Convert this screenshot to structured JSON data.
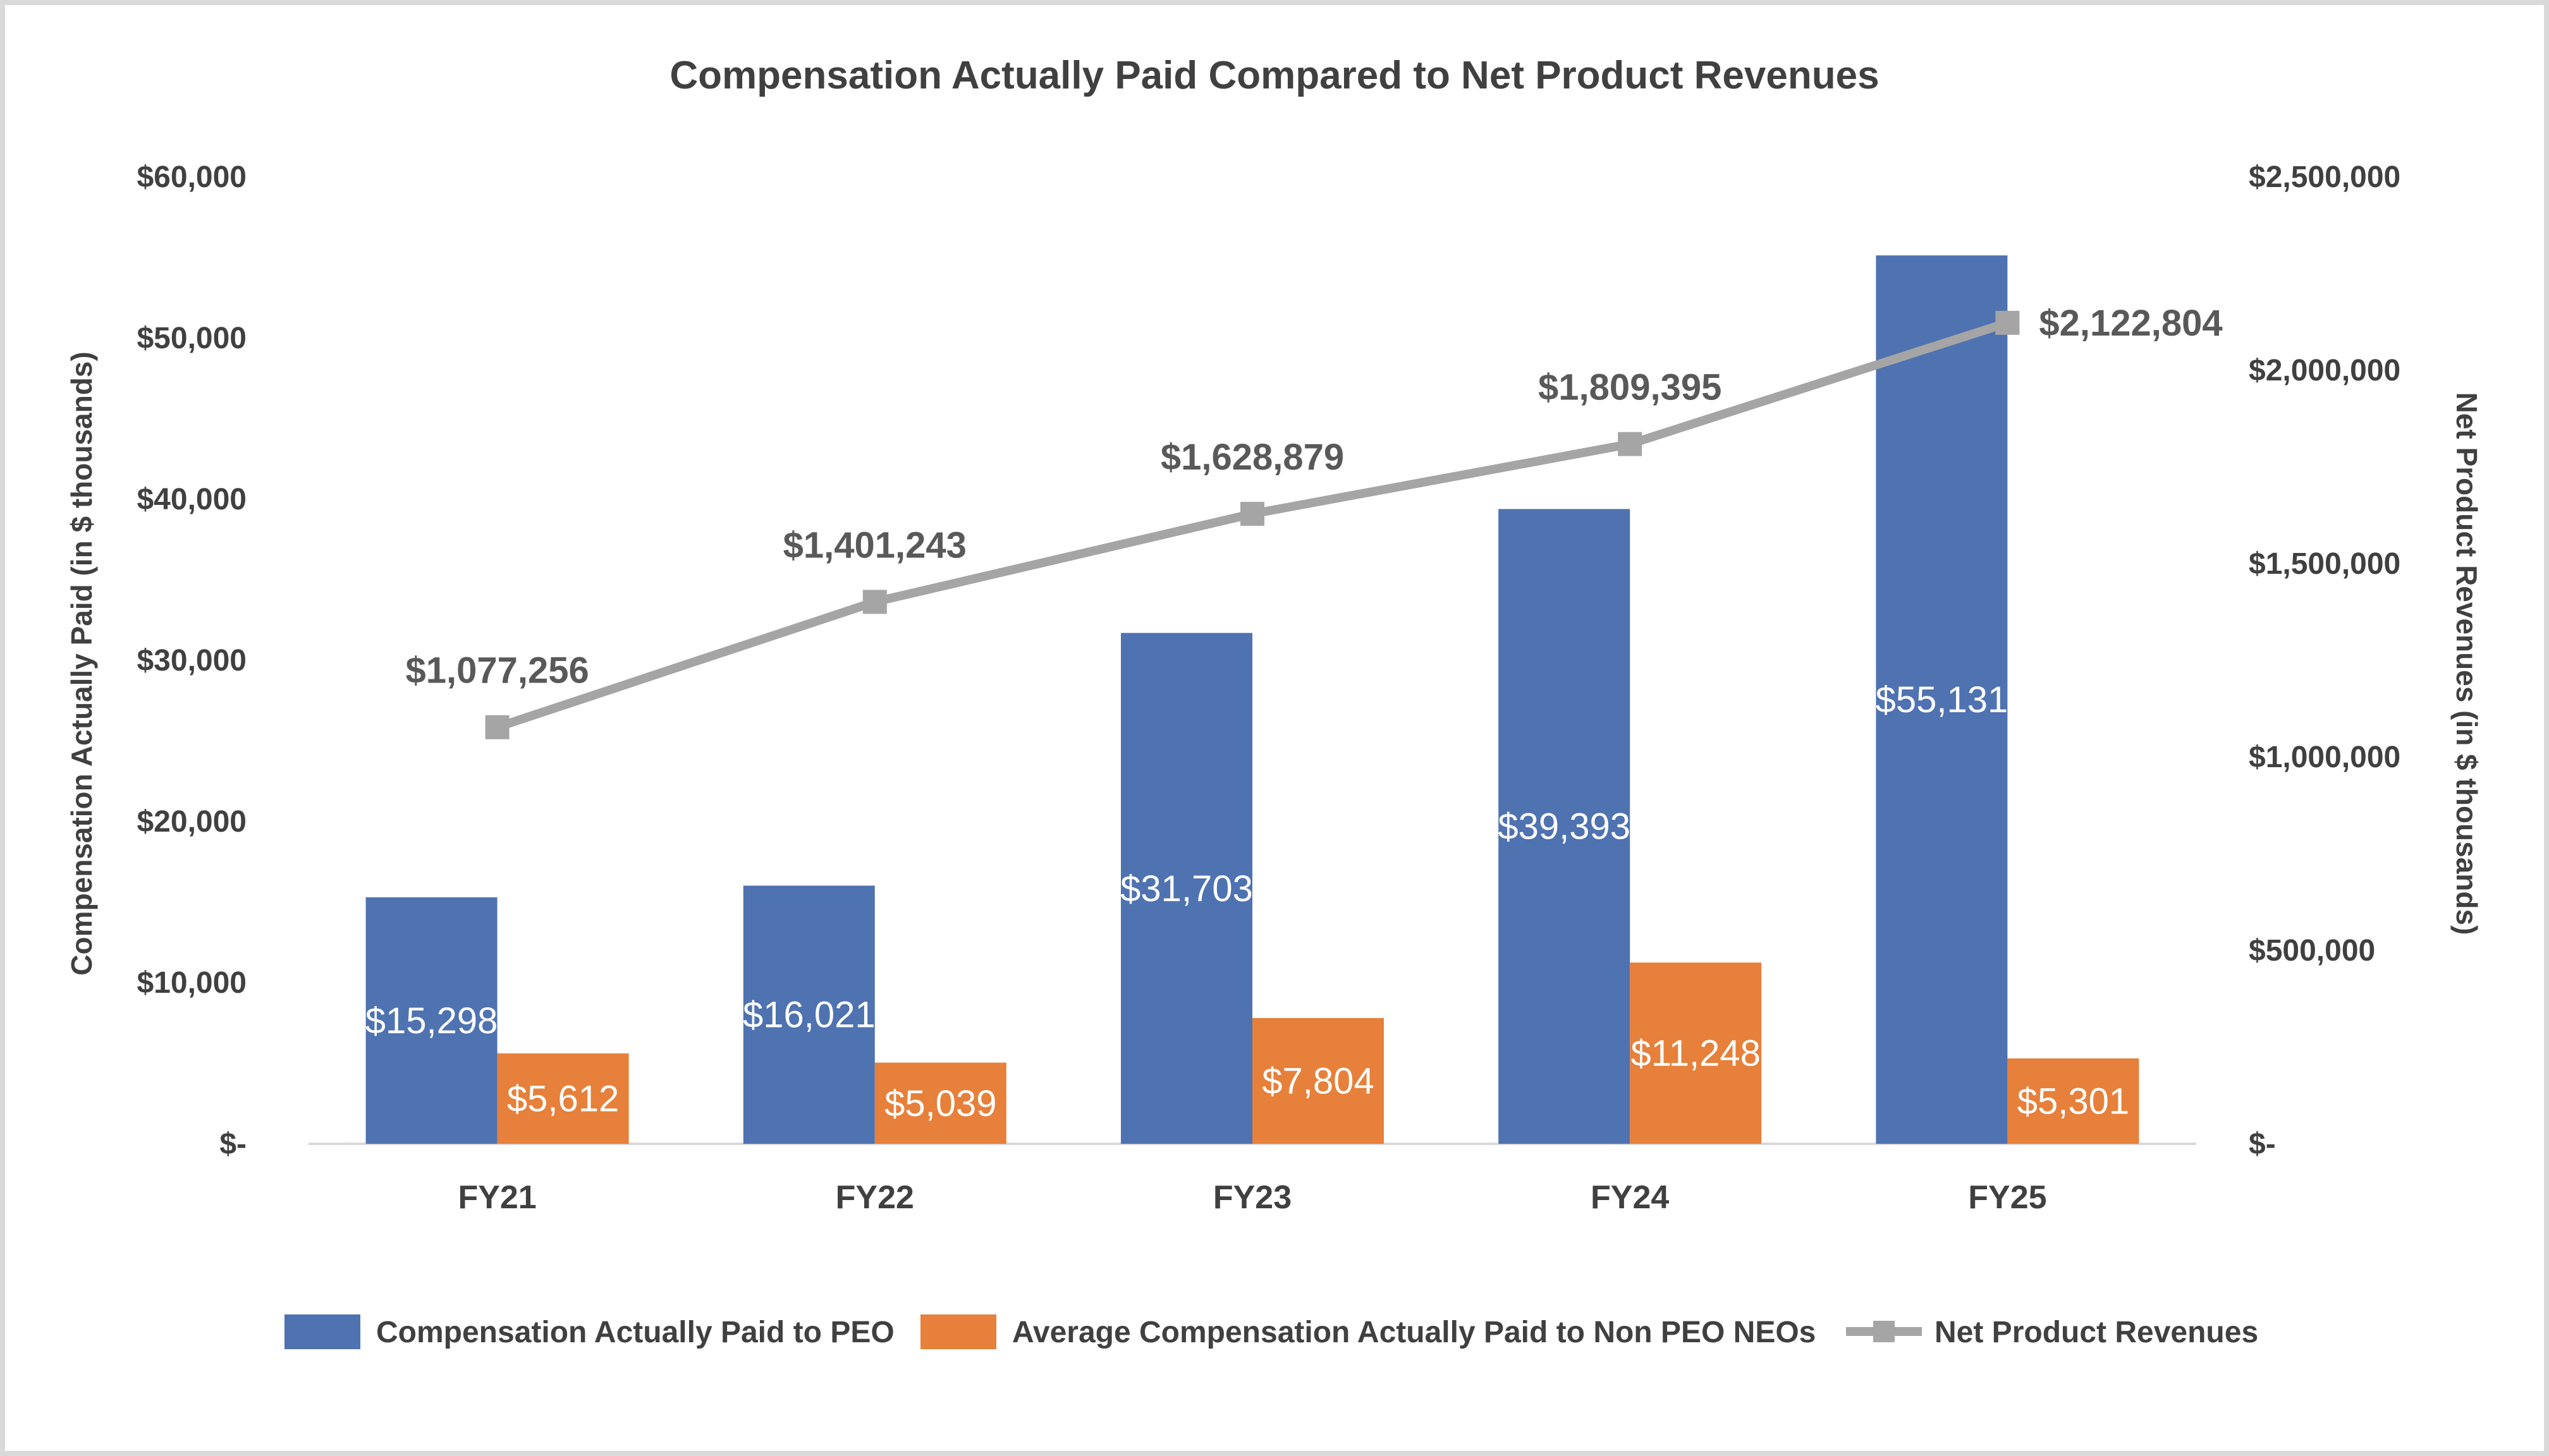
{
  "chart_data": {
    "type": "bar",
    "title": "Compensation Actually Paid Compared to Net Product Revenues",
    "categories": [
      "FY21",
      "FY22",
      "FY23",
      "FY24",
      "FY25"
    ],
    "ylabel_left": "Compensation Actually Paid (in $ thousands)",
    "ylabel_right": "Net Product Revenues (in $ thousands)",
    "ylim_left": [
      0,
      60000
    ],
    "ylim_right": [
      0,
      2500000
    ],
    "yticks_left": [
      0,
      10000,
      20000,
      30000,
      40000,
      50000,
      60000
    ],
    "yticks_left_labels": [
      "$-",
      "$10,000",
      "$20,000",
      "$30,000",
      "$40,000",
      "$50,000",
      "$60,000"
    ],
    "yticks_right": [
      0,
      500000,
      1000000,
      1500000,
      2000000,
      2500000
    ],
    "yticks_right_labels": [
      "$-",
      "$500,000",
      "$1,000,000",
      "$1,500,000",
      "$2,000,000",
      "$2,500,000"
    ],
    "series": [
      {
        "name": "Compensation Actually Paid to PEO",
        "type": "bar",
        "axis": "left",
        "color": "#4F72B1",
        "values": [
          15298,
          16021,
          31703,
          39393,
          55131
        ],
        "labels": [
          "$15,298",
          "$16,021",
          "$31,703",
          "$39,393",
          "$55,131"
        ]
      },
      {
        "name": "Average Compensation Actually Paid to Non PEO NEOs",
        "type": "bar",
        "axis": "left",
        "color": "#E6803A",
        "values": [
          5612,
          5039,
          7804,
          11248,
          5301
        ],
        "labels": [
          "$5,612",
          "$5,039",
          "$7,804",
          "$11,248",
          "$5,301"
        ]
      },
      {
        "name": "Net Product Revenues",
        "type": "line",
        "axis": "right",
        "color": "#A5A5A5",
        "values": [
          1077256,
          1401243,
          1628879,
          1809395,
          2122804
        ],
        "labels": [
          "$1,077,256",
          "$1,401,243",
          "$1,628,879",
          "$1,809,395",
          "$2,122,804"
        ]
      }
    ],
    "legend": "bottom",
    "grid": false
  }
}
